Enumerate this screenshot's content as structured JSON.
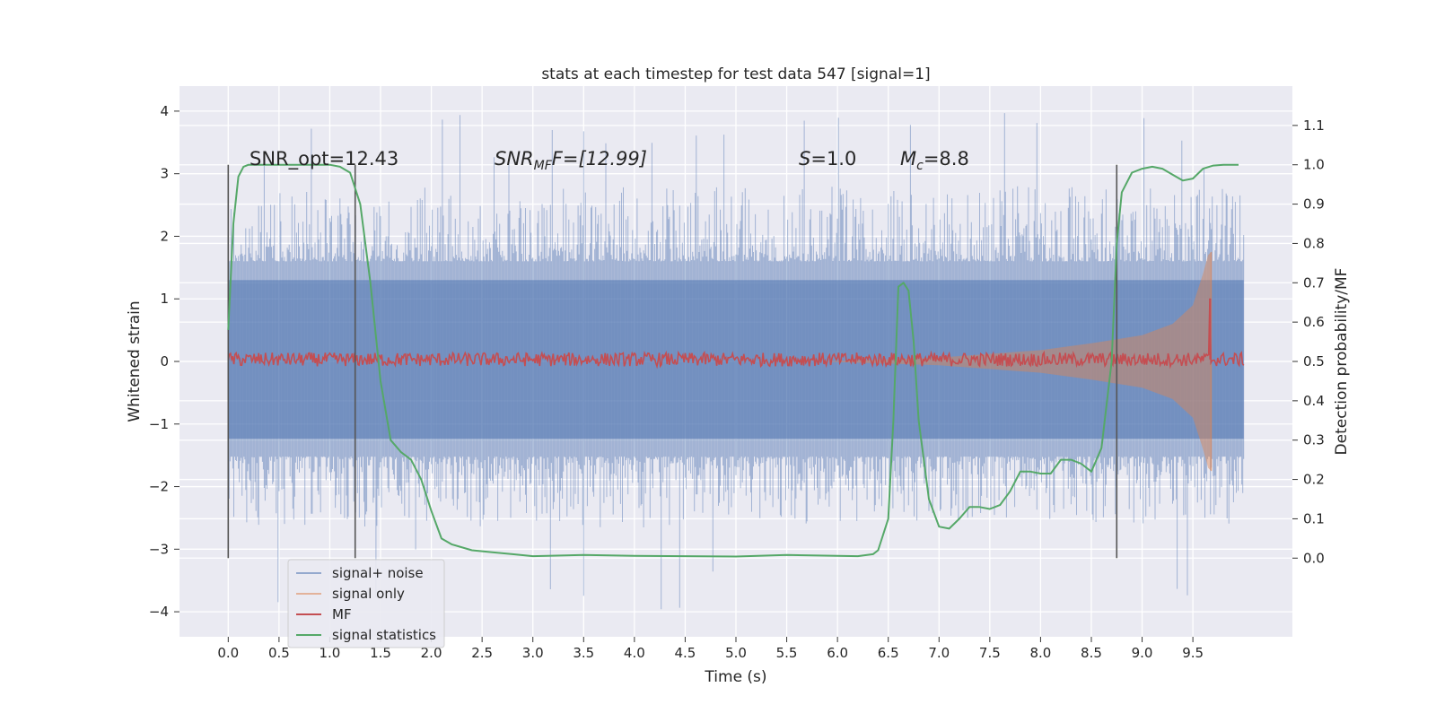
{
  "chart_data": {
    "type": "line",
    "title": "stats at each timestep for test data 547 [signal=1]",
    "xlabel": "Time (s)",
    "ylabel_left": "Whitened strain",
    "ylabel_right": "Detection probability/MF",
    "xlim": [
      -0.48,
      10.48
    ],
    "ylim_left": [
      -4.4,
      4.4
    ],
    "ylim_right": [
      -0.2,
      1.2
    ],
    "x_ticks": [
      "0.0",
      "0.5",
      "1.0",
      "1.5",
      "2.0",
      "2.5",
      "3.0",
      "3.5",
      "4.0",
      "4.5",
      "5.0",
      "5.5",
      "6.0",
      "6.5",
      "7.0",
      "7.5",
      "8.0",
      "8.5",
      "9.0",
      "9.5"
    ],
    "y_ticks_left": [
      "4",
      "3",
      "2",
      "1",
      "0",
      "−1",
      "−2",
      "−3",
      "−4"
    ],
    "y_ticks_right": [
      "1.1",
      "1.0",
      "0.9",
      "0.8",
      "0.7",
      "0.6",
      "0.5",
      "0.4",
      "0.3",
      "0.2",
      "0.1",
      "0.0"
    ],
    "grid": true,
    "legend_position": "lower-left",
    "annotations": {
      "snr_opt": "SNR_opt=12.43",
      "snr_mf_prefix": "SNR",
      "snr_mf_sub": "MF",
      "snr_mf_suffix": "F=[12.99]",
      "s_label": "S",
      "s_value": "=1.0",
      "mc_label": "M",
      "mc_sub": "c",
      "mc_value": "=8.8"
    },
    "vertical_markers_x": [
      0.0,
      1.25,
      8.75
    ],
    "series": [
      {
        "name": "signal+ noise",
        "axis": "left",
        "color": "#4c72b0",
        "style": "noise",
        "x_range": [
          0.0,
          10.0
        ],
        "band_upper": 2.0,
        "band_lower": -1.9,
        "peak_max": 4.0,
        "peak_min": -4.0
      },
      {
        "name": "signal only",
        "axis": "left",
        "color": "#dd8452",
        "style": "chirp",
        "x_range": [
          5.8,
          9.68
        ],
        "envelope": [
          [
            5.8,
            0.0
          ],
          [
            7.0,
            0.06
          ],
          [
            8.0,
            0.18
          ],
          [
            8.5,
            0.29
          ],
          [
            9.0,
            0.42
          ],
          [
            9.3,
            0.6
          ],
          [
            9.5,
            0.9
          ],
          [
            9.6,
            1.4
          ],
          [
            9.65,
            1.7
          ],
          [
            9.68,
            1.75
          ]
        ]
      },
      {
        "name": "MF",
        "axis": "right",
        "color": "#c44e52",
        "style": "noisy-flat",
        "x_range": [
          0.0,
          10.0
        ],
        "baseline": 0.505,
        "spike": {
          "x": 9.67,
          "y": 0.66
        }
      },
      {
        "name": "signal statistics",
        "axis": "right",
        "color": "#55a868",
        "style": "line",
        "x": [
          0.0,
          0.05,
          0.1,
          0.15,
          0.2,
          0.3,
          0.5,
          0.8,
          1.0,
          1.1,
          1.2,
          1.3,
          1.4,
          1.5,
          1.6,
          1.7,
          1.8,
          1.9,
          2.0,
          2.1,
          2.2,
          2.4,
          2.6,
          2.8,
          3.0,
          3.5,
          4.0,
          4.5,
          5.0,
          5.5,
          6.0,
          6.2,
          6.35,
          6.4,
          6.5,
          6.55,
          6.6,
          6.65,
          6.7,
          6.75,
          6.8,
          6.9,
          7.0,
          7.1,
          7.2,
          7.3,
          7.4,
          7.5,
          7.6,
          7.7,
          7.8,
          7.9,
          8.0,
          8.1,
          8.2,
          8.3,
          8.4,
          8.5,
          8.6,
          8.7,
          8.75,
          8.8,
          8.9,
          9.0,
          9.1,
          9.2,
          9.3,
          9.4,
          9.5,
          9.6,
          9.7,
          9.8,
          9.95
        ],
        "y": [
          0.58,
          0.85,
          0.97,
          0.995,
          1.0,
          1.0,
          1.0,
          1.0,
          1.0,
          0.995,
          0.98,
          0.9,
          0.7,
          0.45,
          0.3,
          0.27,
          0.25,
          0.2,
          0.12,
          0.05,
          0.035,
          0.02,
          0.015,
          0.01,
          0.005,
          0.008,
          0.006,
          0.005,
          0.004,
          0.008,
          0.006,
          0.005,
          0.01,
          0.02,
          0.1,
          0.35,
          0.69,
          0.7,
          0.68,
          0.55,
          0.35,
          0.15,
          0.08,
          0.075,
          0.1,
          0.13,
          0.13,
          0.125,
          0.135,
          0.17,
          0.22,
          0.22,
          0.215,
          0.215,
          0.25,
          0.25,
          0.24,
          0.22,
          0.28,
          0.5,
          0.8,
          0.93,
          0.98,
          0.99,
          0.995,
          0.99,
          0.975,
          0.96,
          0.965,
          0.99,
          0.998,
          1.0,
          1.0
        ]
      }
    ]
  }
}
